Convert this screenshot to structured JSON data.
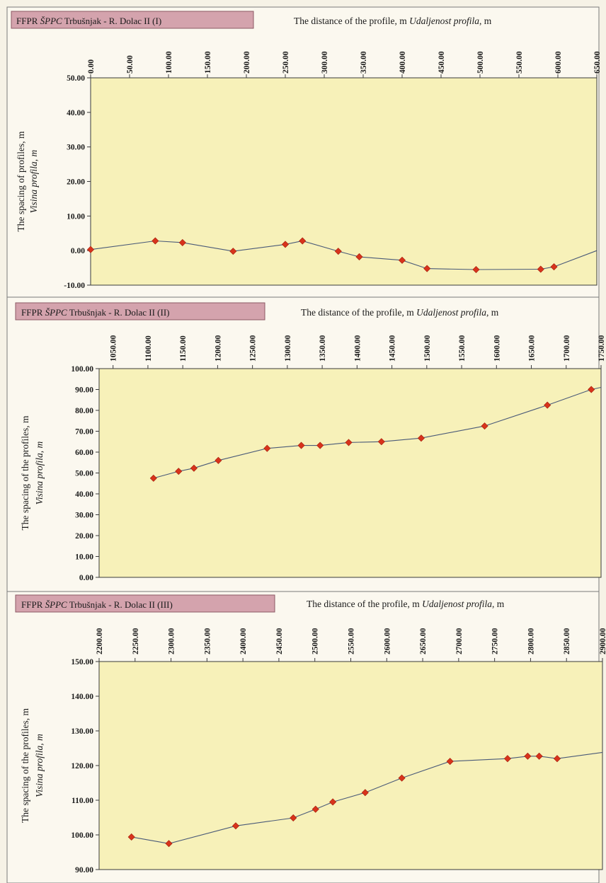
{
  "chart_data": [
    {
      "type": "line",
      "title": "FFPR ŠPPC Trbušnjak - R. Dolac II (I)",
      "title_prefix": "FFPR ",
      "title_italic": "ŠPPC",
      "title_rest": " Trbušnjak - R. Dolac II (I)",
      "xlabel": "The distance of the profile, m",
      "xlabel_italic": "Udaljenost profila",
      "xlabel_unit": ", m",
      "ylabel": "The spacing of profiles, m",
      "ylabel_italic": "Visina profila, m",
      "xlim": [
        0,
        650
      ],
      "ylim": [
        -10,
        50
      ],
      "xticks": [
        "0.00",
        "50.00",
        "100.00",
        "150.00",
        "200.00",
        "250.00",
        "300.00",
        "350.00",
        "400.00",
        "450.00",
        "500.00",
        "550.00",
        "600.00",
        "650.00"
      ],
      "yticks": [
        "50.00",
        "40.00",
        "30.00",
        "20.00",
        "10.00",
        "0.00",
        "-10.00"
      ],
      "line_end": [
        650,
        0
      ],
      "series": [
        {
          "x": [
            0,
            83,
            118,
            183,
            250,
            272,
            318,
            345,
            400,
            432,
            495,
            578,
            595
          ],
          "y": [
            0.3,
            2.8,
            2.3,
            -0.2,
            1.8,
            2.8,
            -0.2,
            -1.8,
            -2.8,
            -5.2,
            -5.5,
            -5.4,
            -4.7
          ]
        }
      ]
    },
    {
      "type": "line",
      "title": "FFPR ŠPPC Trbušnjak - R. Dolac II (II)",
      "title_prefix": "FFPR ",
      "title_italic": "ŠPPC",
      "title_rest": " Trbušnjak - R. Dolac II (II)",
      "xlabel": "The distance of the profile, m",
      "xlabel_italic": "Udaljenost profila",
      "xlabel_unit": ", m",
      "ylabel": "The spacing of the profiles, m",
      "ylabel_italic": "Visina profila, m",
      "xlim": [
        1030,
        1750
      ],
      "ylim": [
        0,
        100
      ],
      "xticks": [
        "1050.00",
        "1100.00",
        "1150.00",
        "1200.00",
        "1250.00",
        "1300.00",
        "1350.00",
        "1400.00",
        "1450.00",
        "1500.00",
        "1550.00",
        "1600.00",
        "1650.00",
        "1700.00",
        "1750.00"
      ],
      "yticks": [
        "100.00",
        "90.00",
        "80.00",
        "70.00",
        "60.00",
        "50.00",
        "40.00",
        "30.00",
        "20.00",
        "10.00",
        "0.00"
      ],
      "line_end": [
        1750,
        91
      ],
      "series": [
        {
          "x": [
            1108,
            1144,
            1166,
            1201,
            1271,
            1320,
            1347,
            1388,
            1435,
            1492,
            1583,
            1673,
            1736
          ],
          "y": [
            47.5,
            50.8,
            52.3,
            56.0,
            61.8,
            63.2,
            63.2,
            64.6,
            65.0,
            66.7,
            72.5,
            82.5,
            90.0
          ]
        }
      ]
    },
    {
      "type": "line",
      "title": "FFPR ŠPPC Trbušnjak - R. Dolac II (III)",
      "title_prefix": "FFPR ",
      "title_italic": "ŠPPC",
      "title_rest": " Trbušnjak - R. Dolac II (III)",
      "xlabel": "The distance of the profile, m",
      "xlabel_italic": "Udaljenost profila",
      "xlabel_unit": ", m",
      "ylabel": "The spacing of the profiles, m",
      "ylabel_italic": "Visina profila, m",
      "xlim": [
        2200,
        2900
      ],
      "ylim": [
        90,
        150
      ],
      "xticks": [
        "2200.00",
        "2250.00",
        "2300.00",
        "2350.00",
        "2400.00",
        "2450.00",
        "2500.00",
        "2550.00",
        "2600.00",
        "2650.00",
        "2700.00",
        "2750.00",
        "2800.00",
        "2850.00",
        "2900.00"
      ],
      "yticks": [
        "150.00",
        "140.00",
        "130.00",
        "120.00",
        "110.00",
        "100.00",
        "90.00"
      ],
      "line_end": [
        2900,
        123.8
      ],
      "series": [
        {
          "x": [
            2245,
            2297,
            2390,
            2470,
            2501,
            2525,
            2570,
            2621,
            2688,
            2768,
            2796,
            2812,
            2837
          ],
          "y": [
            99.4,
            97.5,
            102.6,
            104.9,
            107.4,
            109.5,
            112.2,
            116.4,
            121.2,
            122.0,
            122.7,
            122.7,
            122.0
          ]
        }
      ]
    }
  ]
}
